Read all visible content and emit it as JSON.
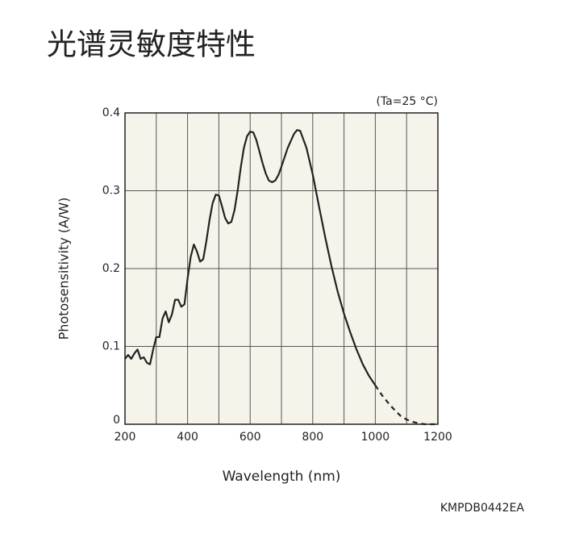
{
  "chart_data": {
    "type": "line",
    "title": "光谱灵敏度特性",
    "annotation": "(Ta=25 °C)",
    "x_label": "Wavelength (nm)",
    "y_label": "Photosensitivity (A/W)",
    "footer": "KMPDB0442EA",
    "x": [
      200,
      210,
      220,
      230,
      240,
      250,
      260,
      270,
      280,
      290,
      300,
      310,
      320,
      330,
      340,
      350,
      360,
      370,
      380,
      390,
      400,
      410,
      420,
      430,
      440,
      450,
      460,
      470,
      480,
      490,
      500,
      510,
      520,
      530,
      540,
      550,
      560,
      570,
      580,
      590,
      600,
      610,
      620,
      630,
      640,
      650,
      660,
      670,
      680,
      690,
      700,
      720,
      740,
      750,
      760,
      780,
      800,
      820,
      840,
      860,
      880,
      900,
      920,
      940,
      960,
      980,
      1000,
      1020,
      1040,
      1060,
      1080,
      1100,
      1120,
      1140,
      1160,
      1180,
      1200
    ],
    "series": [
      {
        "color": "#222222",
        "line_style": "solid",
        "values": [
          0.084,
          0.089,
          0.084,
          0.091,
          0.096,
          0.084,
          0.086,
          0.079,
          0.077,
          0.096,
          0.112,
          0.112,
          0.136,
          0.145,
          0.131,
          0.141,
          0.16,
          0.16,
          0.151,
          0.154,
          0.187,
          0.215,
          0.231,
          0.222,
          0.209,
          0.212,
          0.235,
          0.262,
          0.284,
          0.295,
          0.294,
          0.28,
          0.265,
          0.258,
          0.26,
          0.275,
          0.3,
          0.33,
          0.355,
          0.37,
          0.376,
          0.375,
          0.365,
          0.35,
          0.335,
          0.322,
          0.313,
          0.311,
          0.313,
          0.32,
          0.331,
          0.355,
          0.373,
          0.378,
          0.377,
          0.355,
          0.321,
          0.28,
          0.24,
          0.203,
          0.17,
          0.142,
          0.118,
          0.096,
          0.077,
          0.062,
          0.05,
          null,
          null,
          null,
          null,
          null,
          null,
          null,
          null,
          null,
          null
        ]
      },
      {
        "color": "#222222",
        "line_style": "dashed",
        "values": [
          null,
          null,
          null,
          null,
          null,
          null,
          null,
          null,
          null,
          null,
          null,
          null,
          null,
          null,
          null,
          null,
          null,
          null,
          null,
          null,
          null,
          null,
          null,
          null,
          null,
          null,
          null,
          null,
          null,
          null,
          null,
          null,
          null,
          null,
          null,
          null,
          null,
          null,
          null,
          null,
          null,
          null,
          null,
          null,
          null,
          null,
          null,
          null,
          null,
          null,
          null,
          null,
          null,
          null,
          null,
          null,
          null,
          null,
          null,
          null,
          null,
          null,
          null,
          null,
          null,
          null,
          0.05,
          0.038,
          0.028,
          0.019,
          0.011,
          0.006,
          0.003,
          0.001,
          0,
          0,
          0
        ]
      }
    ],
    "xlim": [
      200,
      1200
    ],
    "xticks": [
      200,
      400,
      600,
      800,
      1000,
      1200
    ],
    "x_grid": [
      300,
      500,
      700,
      900,
      1100
    ],
    "ylim": [
      0,
      0.4
    ],
    "yticks": [
      0,
      0.1,
      0.2,
      0.3,
      0.4
    ],
    "grid": true,
    "plot_background": "#f6f4ea"
  }
}
